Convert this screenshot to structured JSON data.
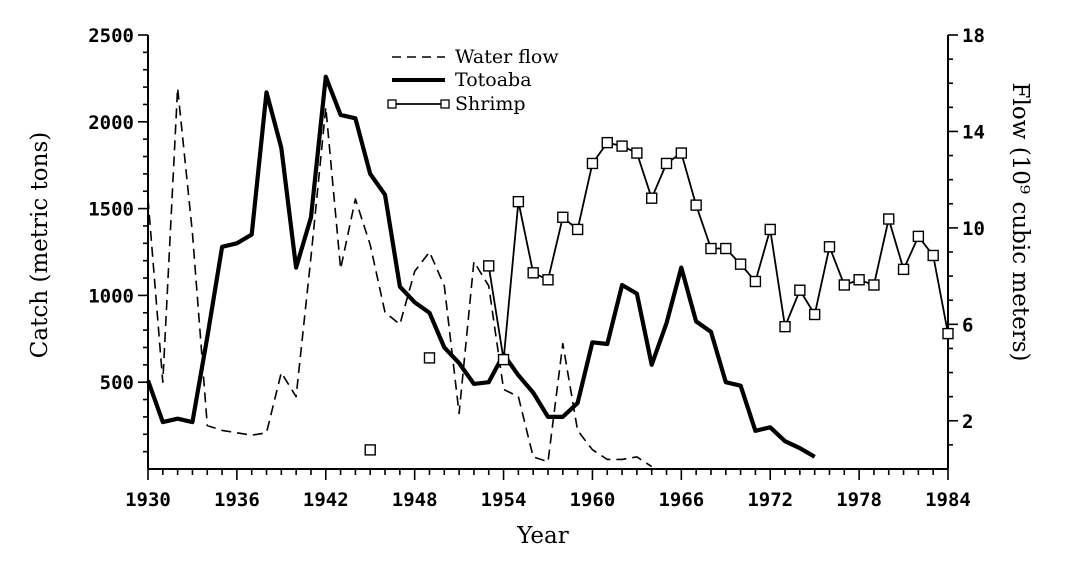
{
  "chart_data": {
    "type": "line",
    "xlabel": "Year",
    "ylabel_left": "Catch (metric tons)",
    "ylabel_right": "Flow (10⁹ cubic meters)",
    "xlim": [
      1930,
      1984
    ],
    "ylim_left": [
      0,
      2500
    ],
    "ylim_right": [
      0,
      18
    ],
    "x_ticks": [
      1930,
      1936,
      1942,
      1948,
      1954,
      1960,
      1966,
      1972,
      1978,
      1984
    ],
    "y_left_tick_labels": [
      500,
      1000,
      1500,
      2000,
      2500
    ],
    "y_right_tick_labels": [
      2,
      6,
      10,
      14,
      18
    ],
    "grid": false,
    "legend_position": "top-center",
    "series": [
      {
        "name": "Water flow",
        "axis": "right",
        "style": "dashed",
        "points": [
          [
            1930,
            11.2
          ],
          [
            1931,
            3.6
          ],
          [
            1932,
            15.8
          ],
          [
            1933,
            9.8
          ],
          [
            1934,
            1.8
          ],
          [
            1935,
            1.6
          ],
          [
            1936,
            1.5
          ],
          [
            1937,
            1.4
          ],
          [
            1938,
            1.5
          ],
          [
            1939,
            4.0
          ],
          [
            1940,
            3.0
          ],
          [
            1941,
            8.8
          ],
          [
            1942,
            15.0
          ],
          [
            1943,
            8.3
          ],
          [
            1944,
            11.2
          ],
          [
            1945,
            9.3
          ],
          [
            1946,
            6.5
          ],
          [
            1947,
            6.0
          ],
          [
            1948,
            8.2
          ],
          [
            1949,
            9.0
          ],
          [
            1950,
            7.6
          ],
          [
            1951,
            2.3
          ],
          [
            1952,
            8.6
          ],
          [
            1953,
            7.6
          ],
          [
            1954,
            3.3
          ],
          [
            1955,
            3.0
          ],
          [
            1956,
            0.5
          ],
          [
            1957,
            0.3
          ],
          [
            1958,
            5.2
          ],
          [
            1959,
            1.6
          ],
          [
            1960,
            0.8
          ],
          [
            1961,
            0.4
          ],
          [
            1962,
            0.4
          ],
          [
            1963,
            0.5
          ],
          [
            1964,
            0.1
          ]
        ]
      },
      {
        "name": "Totoaba",
        "axis": "left",
        "style": "thick-solid",
        "points": [
          [
            1930,
            510
          ],
          [
            1931,
            270
          ],
          [
            1932,
            290
          ],
          [
            1933,
            270
          ],
          [
            1934,
            760
          ],
          [
            1935,
            1280
          ],
          [
            1936,
            1300
          ],
          [
            1937,
            1350
          ],
          [
            1938,
            2170
          ],
          [
            1939,
            1850
          ],
          [
            1940,
            1160
          ],
          [
            1941,
            1450
          ],
          [
            1942,
            2260
          ],
          [
            1943,
            2040
          ],
          [
            1944,
            2020
          ],
          [
            1945,
            1700
          ],
          [
            1946,
            1580
          ],
          [
            1947,
            1050
          ],
          [
            1948,
            960
          ],
          [
            1949,
            900
          ],
          [
            1950,
            700
          ],
          [
            1951,
            610
          ],
          [
            1952,
            490
          ],
          [
            1953,
            500
          ],
          [
            1954,
            660
          ],
          [
            1955,
            540
          ],
          [
            1956,
            440
          ],
          [
            1957,
            300
          ],
          [
            1958,
            300
          ],
          [
            1959,
            380
          ],
          [
            1960,
            730
          ],
          [
            1961,
            720
          ],
          [
            1962,
            1060
          ],
          [
            1963,
            1010
          ],
          [
            1964,
            600
          ],
          [
            1965,
            840
          ],
          [
            1966,
            1160
          ],
          [
            1967,
            850
          ],
          [
            1968,
            790
          ],
          [
            1969,
            500
          ],
          [
            1970,
            480
          ],
          [
            1971,
            220
          ],
          [
            1972,
            240
          ],
          [
            1973,
            160
          ],
          [
            1974,
            120
          ],
          [
            1975,
            70
          ]
        ]
      },
      {
        "name": "Shrimp",
        "axis": "left",
        "style": "solid-square-markers",
        "points": [
          [
            1953,
            1170
          ],
          [
            1954,
            630
          ],
          [
            1955,
            1540
          ],
          [
            1956,
            1130
          ],
          [
            1957,
            1090
          ],
          [
            1958,
            1450
          ],
          [
            1959,
            1380
          ],
          [
            1960,
            1760
          ],
          [
            1961,
            1880
          ],
          [
            1962,
            1860
          ],
          [
            1963,
            1820
          ],
          [
            1964,
            1560
          ],
          [
            1965,
            1760
          ],
          [
            1966,
            1820
          ],
          [
            1967,
            1520
          ],
          [
            1968,
            1270
          ],
          [
            1969,
            1270
          ],
          [
            1970,
            1180
          ],
          [
            1971,
            1080
          ],
          [
            1972,
            1380
          ],
          [
            1973,
            820
          ],
          [
            1974,
            1030
          ],
          [
            1975,
            890
          ],
          [
            1976,
            1280
          ],
          [
            1977,
            1060
          ],
          [
            1978,
            1090
          ],
          [
            1979,
            1060
          ],
          [
            1980,
            1440
          ],
          [
            1981,
            1150
          ],
          [
            1982,
            1340
          ],
          [
            1983,
            1230
          ],
          [
            1984,
            780
          ]
        ]
      }
    ],
    "shrimp_isolated_points": [
      [
        1945,
        110
      ],
      [
        1949,
        640
      ]
    ]
  }
}
